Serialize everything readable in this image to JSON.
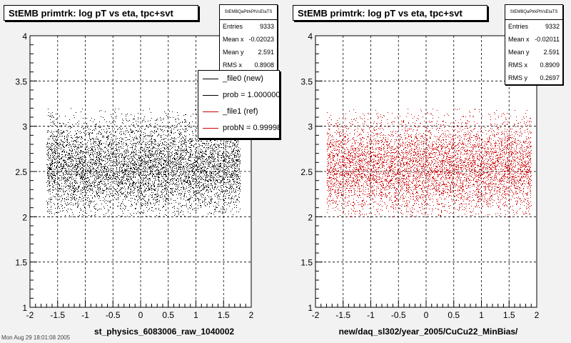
{
  "footer_stamp": "Mon Aug 29 18:01:08 2005",
  "chart_data": [
    {
      "type": "scatter",
      "title": "StEMB primtrk: log pT vs eta, tpc+svt",
      "xlabel": "st_physics_6083006_raw_1040002",
      "ylabel": "",
      "xlim": [
        -2,
        2
      ],
      "ylim": [
        1,
        4
      ],
      "x_ticks": [
        "-2",
        "-1.5",
        "-1",
        "-0.5",
        "0",
        "0.5",
        "1",
        "1.5",
        "2"
      ],
      "y_ticks": [
        "1",
        "1.5",
        "2",
        "2.5",
        "3",
        "3.5",
        "4"
      ],
      "grid": true,
      "marker_color": "#000000",
      "stats": {
        "name": "StEMBQaPtrkPtVsEtaTS",
        "rows": [
          {
            "label": "Entries",
            "value": "9333"
          },
          {
            "label": "Mean x",
            "value": "-0.02023"
          },
          {
            "label": "Mean y",
            "value": "2.591"
          },
          {
            "label": "RMS x",
            "value": "0.8908"
          }
        ]
      },
      "legend": {
        "placement": "top-right",
        "entries": [
          {
            "label": "_file0 (new)",
            "color": "#000000"
          },
          {
            "label": "prob = 1.000000",
            "color": "#000000"
          },
          {
            "label": "_file1 (ref)",
            "color": "#cc0000"
          },
          {
            "label": "probN = 0.999989",
            "color": "#cc0000"
          }
        ]
      },
      "distribution": {
        "x_range": [
          -1.7,
          1.8
        ],
        "y_mean": 2.55,
        "y_rms": 0.27,
        "y_range": [
          2.0,
          3.2
        ],
        "points_drawn": 6500,
        "seed": 17
      }
    },
    {
      "type": "scatter",
      "title": "StEMB primtrk: log pT vs eta, tpc+svt",
      "xlabel": "new/daq_sl302/year_2005/CuCu22_MinBias/",
      "ylabel": "",
      "xlim": [
        -2,
        2
      ],
      "ylim": [
        1,
        4
      ],
      "x_ticks": [
        "-2",
        "-1.5",
        "-1",
        "-0.5",
        "0",
        "0.5",
        "1",
        "1.5",
        "2"
      ],
      "y_ticks": [
        "1",
        "1.5",
        "2",
        "2.5",
        "3",
        "3.5",
        "4"
      ],
      "grid": true,
      "marker_color": "#cc0000",
      "stats": {
        "name": "StEMBQaPtrkPtVsEtaTS",
        "rows": [
          {
            "label": "Entries",
            "value": "9332"
          },
          {
            "label": "Mean x",
            "value": "-0.02011"
          },
          {
            "label": "Mean y",
            "value": "2.591"
          },
          {
            "label": "RMS x",
            "value": "0.8909"
          },
          {
            "label": "RMS y",
            "value": "0.2697"
          }
        ]
      },
      "distribution": {
        "x_range": [
          -1.8,
          1.9
        ],
        "y_mean": 2.55,
        "y_rms": 0.27,
        "y_range": [
          2.0,
          3.2
        ],
        "points_drawn": 6500,
        "seed": 91
      }
    }
  ]
}
